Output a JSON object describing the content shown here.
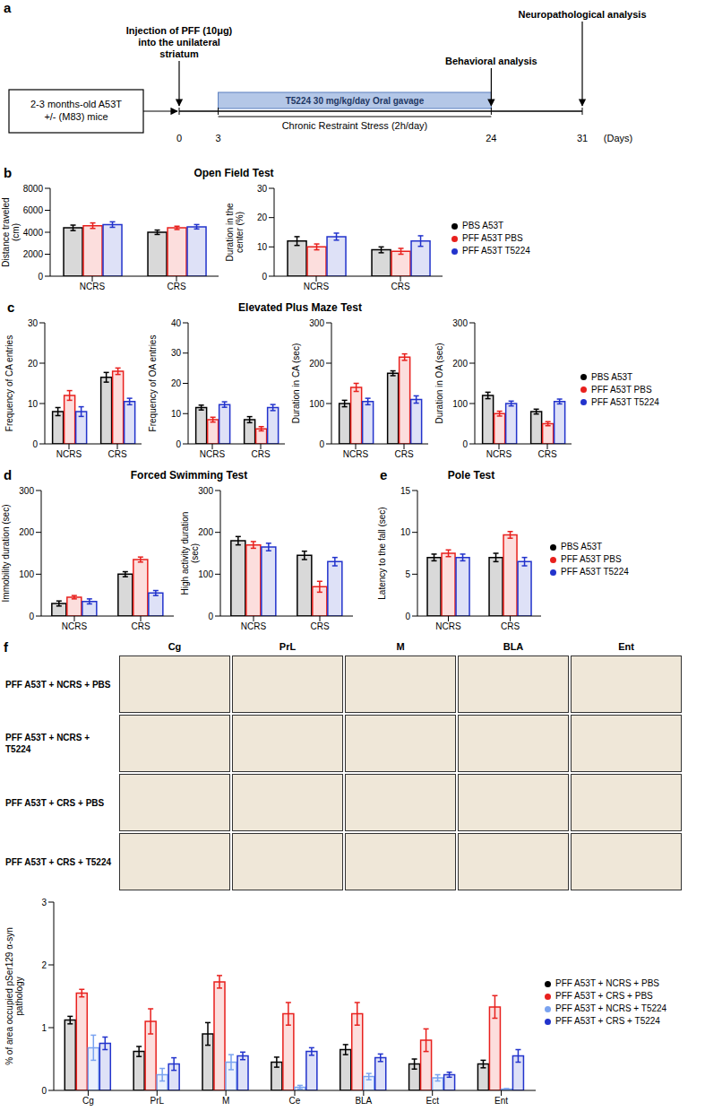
{
  "panel_a": {
    "label": "a",
    "start_box": "2-3 months-old A53T +/- (M83) mice",
    "days": [
      0,
      3,
      24,
      31
    ],
    "days_label": "(Days)",
    "events": [
      {
        "day": 0,
        "text": "Injection of PFF (10μg) into the unilateral striatum"
      },
      {
        "day": 24,
        "text": "Behavioral analysis"
      },
      {
        "day": 31,
        "text": "Neuropathological analysis"
      }
    ],
    "treatment": {
      "from": 3,
      "to": 24,
      "text": "T5224 30 mg/kg/day Oral gavage"
    },
    "stress": {
      "from": 3,
      "to": 24,
      "text": "Chronic Restraint Stress (2h/day)"
    }
  },
  "chart_data": [
    {
      "panel": "b",
      "title": "Open Field Test",
      "type": "bar",
      "y_label": "Distance traveled (cm)",
      "categories": [
        "NCRS",
        "CRS"
      ],
      "ylim": [
        0,
        8000
      ],
      "yticks": [
        0,
        2000,
        4000,
        6000,
        8000
      ],
      "grid": false,
      "series": [
        {
          "name": "PBS A53T",
          "color": "#000000",
          "values": [
            4400,
            4000
          ],
          "errors": [
            250,
            200
          ]
        },
        {
          "name": "PFF A53T PBS",
          "color": "#e8201d",
          "values": [
            4600,
            4400
          ],
          "errors": [
            250,
            150
          ]
        },
        {
          "name": "PFF A53T T5224",
          "color": "#2233cc",
          "values": [
            4700,
            4500
          ],
          "errors": [
            250,
            200
          ]
        }
      ]
    },
    {
      "type": "bar",
      "y_label": "Duration in the center (%)",
      "categories": [
        "NCRS",
        "CRS"
      ],
      "ylim": [
        0,
        30
      ],
      "yticks": [
        0,
        10,
        20,
        30
      ],
      "grid": false,
      "legend": "right",
      "series": [
        {
          "name": "PBS A53T",
          "color": "#000000",
          "values": [
            12,
            9
          ],
          "errors": [
            1.5,
            1
          ]
        },
        {
          "name": "PFF A53T PBS",
          "color": "#e8201d",
          "values": [
            10,
            8.5
          ],
          "errors": [
            1,
            1
          ]
        },
        {
          "name": "PFF A53T T5224",
          "color": "#2233cc",
          "values": [
            13.5,
            12
          ],
          "errors": [
            1.2,
            1.8
          ]
        }
      ]
    },
    {
      "panel": "c",
      "title": "Elevated Plus Maze Test",
      "type": "bar",
      "y_label": "Frequency of CA entries",
      "categories": [
        "NCRS",
        "CRS"
      ],
      "ylim": [
        0,
        30
      ],
      "yticks": [
        0,
        10,
        20,
        30
      ],
      "grid": false,
      "series": [
        {
          "name": "PBS A53T",
          "color": "#000000",
          "values": [
            8,
            16.5
          ],
          "errors": [
            1,
            1.2
          ]
        },
        {
          "name": "PFF A53T PBS",
          "color": "#e8201d",
          "values": [
            12,
            18
          ],
          "errors": [
            1.2,
            0.8
          ]
        },
        {
          "name": "PFF A53T T5224",
          "color": "#2233cc",
          "values": [
            8,
            10.5
          ],
          "errors": [
            1.2,
            0.8
          ]
        }
      ]
    },
    {
      "type": "bar",
      "y_label": "Frequency of OA entries",
      "categories": [
        "NCRS",
        "CRS"
      ],
      "ylim": [
        0,
        40
      ],
      "yticks": [
        0,
        10,
        20,
        30,
        40
      ],
      "grid": false,
      "series": [
        {
          "name": "PBS A53T",
          "color": "#000000",
          "values": [
            12,
            8
          ],
          "errors": [
            0.8,
            1
          ]
        },
        {
          "name": "PFF A53T PBS",
          "color": "#e8201d",
          "values": [
            8,
            5
          ],
          "errors": [
            0.8,
            0.7
          ]
        },
        {
          "name": "PFF A53T T5224",
          "color": "#2233cc",
          "values": [
            13,
            12
          ],
          "errors": [
            0.9,
            1
          ]
        }
      ]
    },
    {
      "type": "bar",
      "y_label": "Duration in CA (sec)",
      "categories": [
        "NCRS",
        "CRS"
      ],
      "ylim": [
        0,
        300
      ],
      "yticks": [
        0,
        100,
        200,
        300
      ],
      "grid": false,
      "series": [
        {
          "name": "PBS A53T",
          "color": "#000000",
          "values": [
            100,
            175
          ],
          "errors": [
            8,
            6
          ]
        },
        {
          "name": "PFF A53T PBS",
          "color": "#e8201d",
          "values": [
            140,
            215
          ],
          "errors": [
            10,
            8
          ]
        },
        {
          "name": "PFF A53T T5224",
          "color": "#2233cc",
          "values": [
            105,
            110
          ],
          "errors": [
            8,
            9
          ]
        }
      ]
    },
    {
      "type": "bar",
      "y_label": "Duration in OA (sec)",
      "categories": [
        "NCRS",
        "CRS"
      ],
      "ylim": [
        0,
        300
      ],
      "yticks": [
        0,
        100,
        200,
        300
      ],
      "grid": false,
      "legend": "right",
      "series": [
        {
          "name": "PBS A53T",
          "color": "#000000",
          "values": [
            120,
            80
          ],
          "errors": [
            8,
            6
          ]
        },
        {
          "name": "PFF A53T PBS",
          "color": "#e8201d",
          "values": [
            75,
            50
          ],
          "errors": [
            6,
            5
          ]
        },
        {
          "name": "PFF A53T T5224",
          "color": "#2233cc",
          "values": [
            100,
            105
          ],
          "errors": [
            6,
            6
          ]
        }
      ]
    },
    {
      "panel": "d",
      "title": "Forced Swimming Test",
      "type": "bar",
      "y_label": "Immobility duration (sec)",
      "categories": [
        "NCRS",
        "CRS"
      ],
      "ylim": [
        0,
        300
      ],
      "yticks": [
        0,
        100,
        200,
        300
      ],
      "grid": false,
      "series": [
        {
          "name": "PBS A53T",
          "color": "#000000",
          "values": [
            30,
            100
          ],
          "errors": [
            6,
            6
          ]
        },
        {
          "name": "PFF A53T PBS",
          "color": "#e8201d",
          "values": [
            45,
            135
          ],
          "errors": [
            4,
            6
          ]
        },
        {
          "name": "PFF A53T T5224",
          "color": "#2233cc",
          "values": [
            35,
            55
          ],
          "errors": [
            6,
            6
          ]
        }
      ]
    },
    {
      "type": "bar",
      "y_label": "High activity duration (sec)",
      "categories": [
        "NCRS",
        "CRS"
      ],
      "ylim": [
        0,
        300
      ],
      "yticks": [
        0,
        100,
        200,
        300
      ],
      "grid": false,
      "series": [
        {
          "name": "PBS A53T",
          "color": "#000000",
          "values": [
            180,
            145
          ],
          "errors": [
            10,
            10
          ]
        },
        {
          "name": "PFF A53T PBS",
          "color": "#e8201d",
          "values": [
            170,
            70
          ],
          "errors": [
            8,
            13
          ]
        },
        {
          "name": "PFF A53T T5224",
          "color": "#2233cc",
          "values": [
            165,
            130
          ],
          "errors": [
            9,
            10
          ]
        }
      ]
    },
    {
      "panel": "e",
      "title": "Pole Test",
      "type": "bar",
      "y_label": "Latency to the fall (sec)",
      "categories": [
        "NCRS",
        "CRS"
      ],
      "ylim": [
        0,
        15
      ],
      "yticks": [
        0,
        5,
        10,
        15
      ],
      "grid": false,
      "legend": "right",
      "series": [
        {
          "name": "PBS A53T",
          "color": "#000000",
          "values": [
            7,
            7
          ],
          "errors": [
            0.4,
            0.5
          ]
        },
        {
          "name": "PFF A53T PBS",
          "color": "#e8201d",
          "values": [
            7.5,
            9.7
          ],
          "errors": [
            0.4,
            0.4
          ]
        },
        {
          "name": "PFF A53T T5224",
          "color": "#2233cc",
          "values": [
            7,
            6.5
          ],
          "errors": [
            0.4,
            0.5
          ]
        }
      ]
    },
    {
      "type": "bar",
      "y_label": "% of area occupied pSer129 α-syn pathology",
      "categories": [
        "Cg",
        "PrL",
        "M",
        "Ce",
        "BLA",
        "Ect",
        "Ent"
      ],
      "ylim": [
        0,
        3
      ],
      "yticks": [
        0,
        1,
        2,
        3
      ],
      "grid": false,
      "legend": "right",
      "series": [
        {
          "name": "PFF A53T + NCRS + PBS",
          "color": "#000000",
          "values": [
            1.12,
            0.62,
            0.9,
            0.45,
            0.65,
            0.42,
            0.42
          ],
          "errors": [
            0.06,
            0.08,
            0.18,
            0.08,
            0.08,
            0.08,
            0.06
          ]
        },
        {
          "name": "PFF A53T + CRS + PBS",
          "color": "#e8201d",
          "values": [
            1.55,
            1.1,
            1.73,
            1.22,
            1.22,
            0.8,
            1.33
          ],
          "errors": [
            0.06,
            0.2,
            0.1,
            0.18,
            0.18,
            0.18,
            0.18
          ]
        },
        {
          "name": "PFF A53T + NCRS + T5224",
          "color": "#7aa3f0",
          "values": [
            0.68,
            0.25,
            0.45,
            0.05,
            0.22,
            0.2,
            0.02
          ],
          "errors": [
            0.2,
            0.1,
            0.12,
            0.03,
            0.05,
            0.05,
            0.01
          ]
        },
        {
          "name": "PFF A53T + CRS + T5224",
          "color": "#2233cc",
          "values": [
            0.75,
            0.42,
            0.55,
            0.62,
            0.52,
            0.25,
            0.55
          ],
          "errors": [
            0.1,
            0.1,
            0.06,
            0.06,
            0.06,
            0.04,
            0.1
          ]
        }
      ]
    }
  ],
  "panel_f_images": {
    "panel": "f",
    "columns": [
      "Cg",
      "PrL",
      "M",
      "BLA",
      "Ent"
    ],
    "rows": [
      "PFF A53T + NCRS + PBS",
      "PFF A53T + NCRS + T5224",
      "PFF A53T + CRS + PBS",
      "PFF A53T + CRS + T5224"
    ]
  }
}
